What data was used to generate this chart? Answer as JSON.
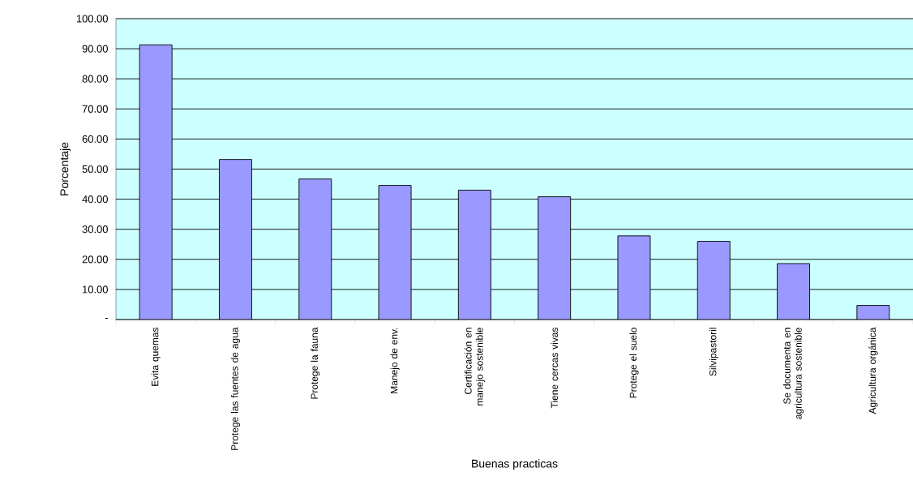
{
  "chart_data": {
    "type": "bar",
    "xlabel": "Buenas practicas",
    "ylabel": "Porcentaje",
    "categories": [
      "Evita quemas",
      "Protege las fuentes de agua",
      "Protege la fauna",
      "Manejo de env.",
      "Certificación en manejo sostenible",
      "Tiene cercas vivas",
      "Protege el suelo",
      "Silvipastoril",
      "Se documenta en agricultura sostenible",
      "Agricultura orgánica"
    ],
    "values": [
      91.3,
      53.2,
      46.7,
      44.6,
      43.0,
      40.8,
      27.8,
      26.0,
      18.6,
      4.7
    ],
    "color": "#9999ff",
    "ylim": [
      0,
      100
    ],
    "yticks": [
      {
        "value": 0,
        "label": "-"
      },
      {
        "value": 10,
        "label": "10.00"
      },
      {
        "value": 20,
        "label": "20.00"
      },
      {
        "value": 30,
        "label": "30.00"
      },
      {
        "value": 40,
        "label": "40.00"
      },
      {
        "value": 50,
        "label": "50.00"
      },
      {
        "value": 60,
        "label": "60.00"
      },
      {
        "value": 70,
        "label": "70.00"
      },
      {
        "value": 80,
        "label": "80.00"
      },
      {
        "value": 90,
        "label": "90.00"
      },
      {
        "value": 100,
        "label": "100.00"
      }
    ],
    "grid": "y"
  }
}
